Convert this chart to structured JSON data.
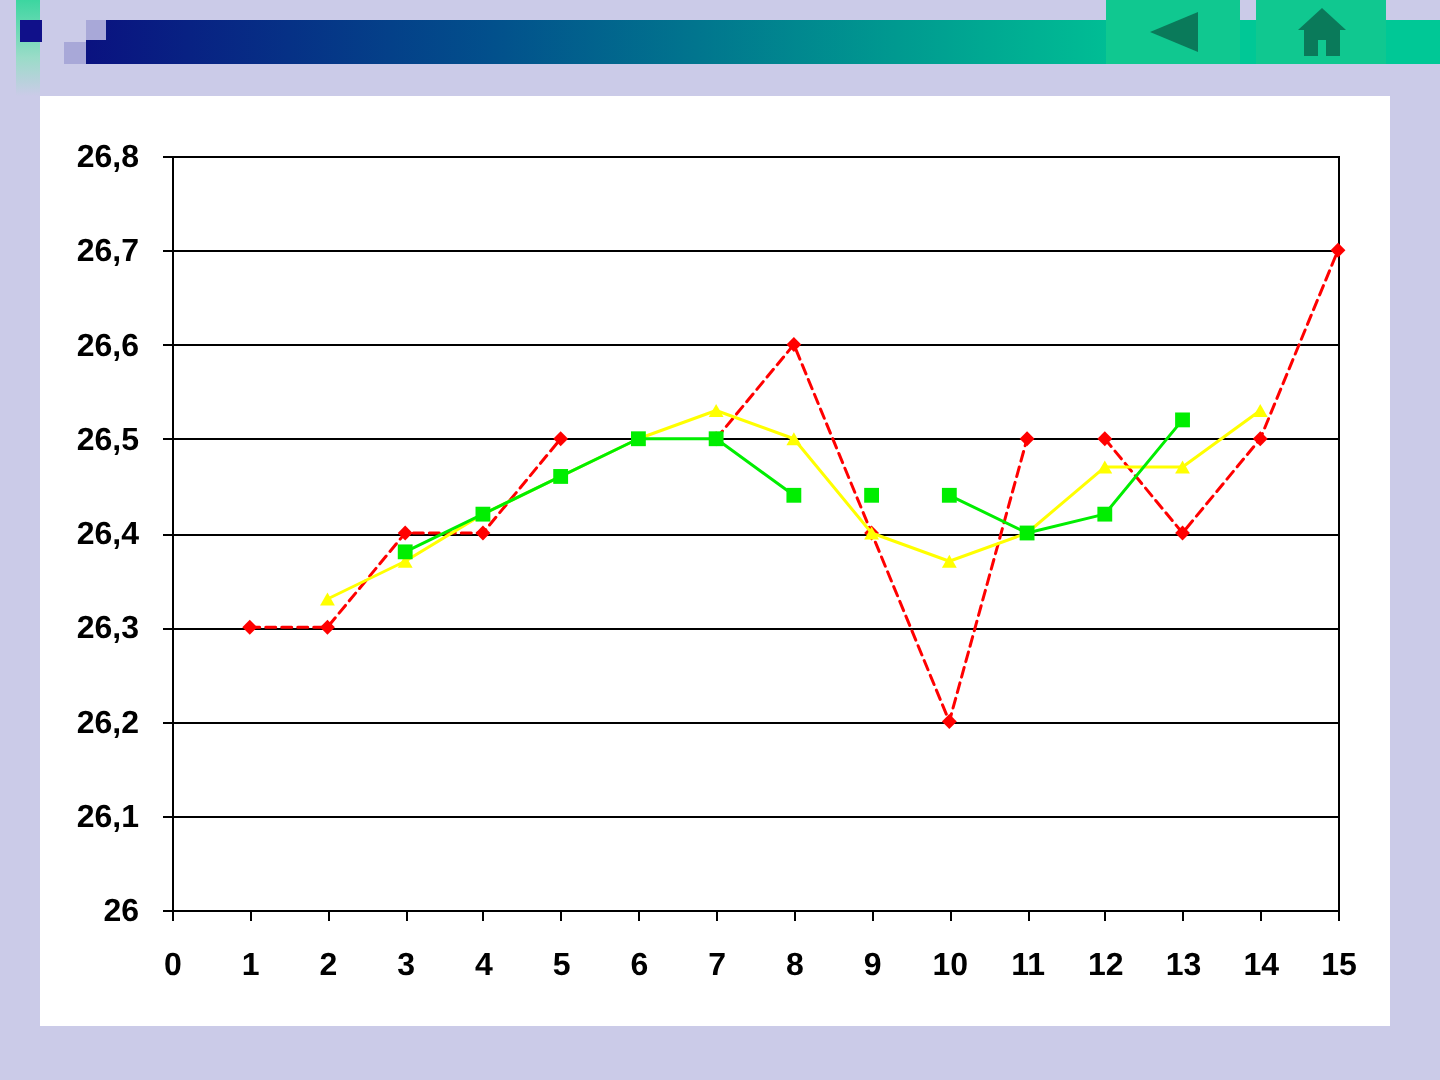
{
  "chart_data": {
    "type": "line",
    "xlim": [
      0,
      15
    ],
    "xticks": [
      0,
      1,
      2,
      3,
      4,
      5,
      6,
      7,
      8,
      9,
      10,
      11,
      12,
      13,
      14,
      15
    ],
    "ylim": [
      26,
      26.8
    ],
    "yticks": [
      26,
      {
        "value": 26.1,
        "label": "26,1"
      },
      {
        "value": 26.2,
        "label": "26,2"
      },
      {
        "value": 26.3,
        "label": "26,3"
      },
      {
        "value": 26.4,
        "label": "26,4"
      },
      {
        "value": 26.5,
        "label": "26,5"
      },
      {
        "value": 26.6,
        "label": "26,6"
      },
      {
        "value": 26.7,
        "label": "26,7"
      },
      {
        "value": 26.8,
        "label": "26,8"
      }
    ],
    "grid": "y",
    "series": [
      {
        "color": "#ff0000",
        "marker": "diamond",
        "line_style": "dashed",
        "x": [
          1,
          2,
          3,
          4,
          5,
          6,
          7,
          8,
          9,
          10,
          11,
          11.5,
          12,
          13,
          14,
          15
        ],
        "values": [
          26.3,
          26.3,
          26.4,
          26.4,
          26.5,
          null,
          26.5,
          26.6,
          26.4,
          26.2,
          26.5,
          null,
          26.5,
          26.4,
          26.5,
          26.7
        ]
      },
      {
        "color": "#ffff00",
        "marker": "triangle",
        "line_style": "solid",
        "x": [
          2,
          3,
          4,
          5,
          6,
          7,
          8,
          9,
          10,
          11,
          12,
          13,
          14
        ],
        "values": [
          26.33,
          26.37,
          26.42,
          26.46,
          26.5,
          26.53,
          26.5,
          26.4,
          26.37,
          26.4,
          26.47,
          26.47,
          26.53
        ]
      },
      {
        "color": "#00ee00",
        "marker": "square",
        "line_style": "solid",
        "x": [
          3,
          4,
          5,
          6,
          7,
          8,
          8.5,
          9,
          9.5,
          10,
          11,
          12,
          13
        ],
        "values": [
          26.38,
          26.42,
          26.46,
          26.5,
          26.5,
          26.44,
          null,
          26.44,
          null,
          26.44,
          26.4,
          26.42,
          26.52
        ]
      }
    ]
  }
}
